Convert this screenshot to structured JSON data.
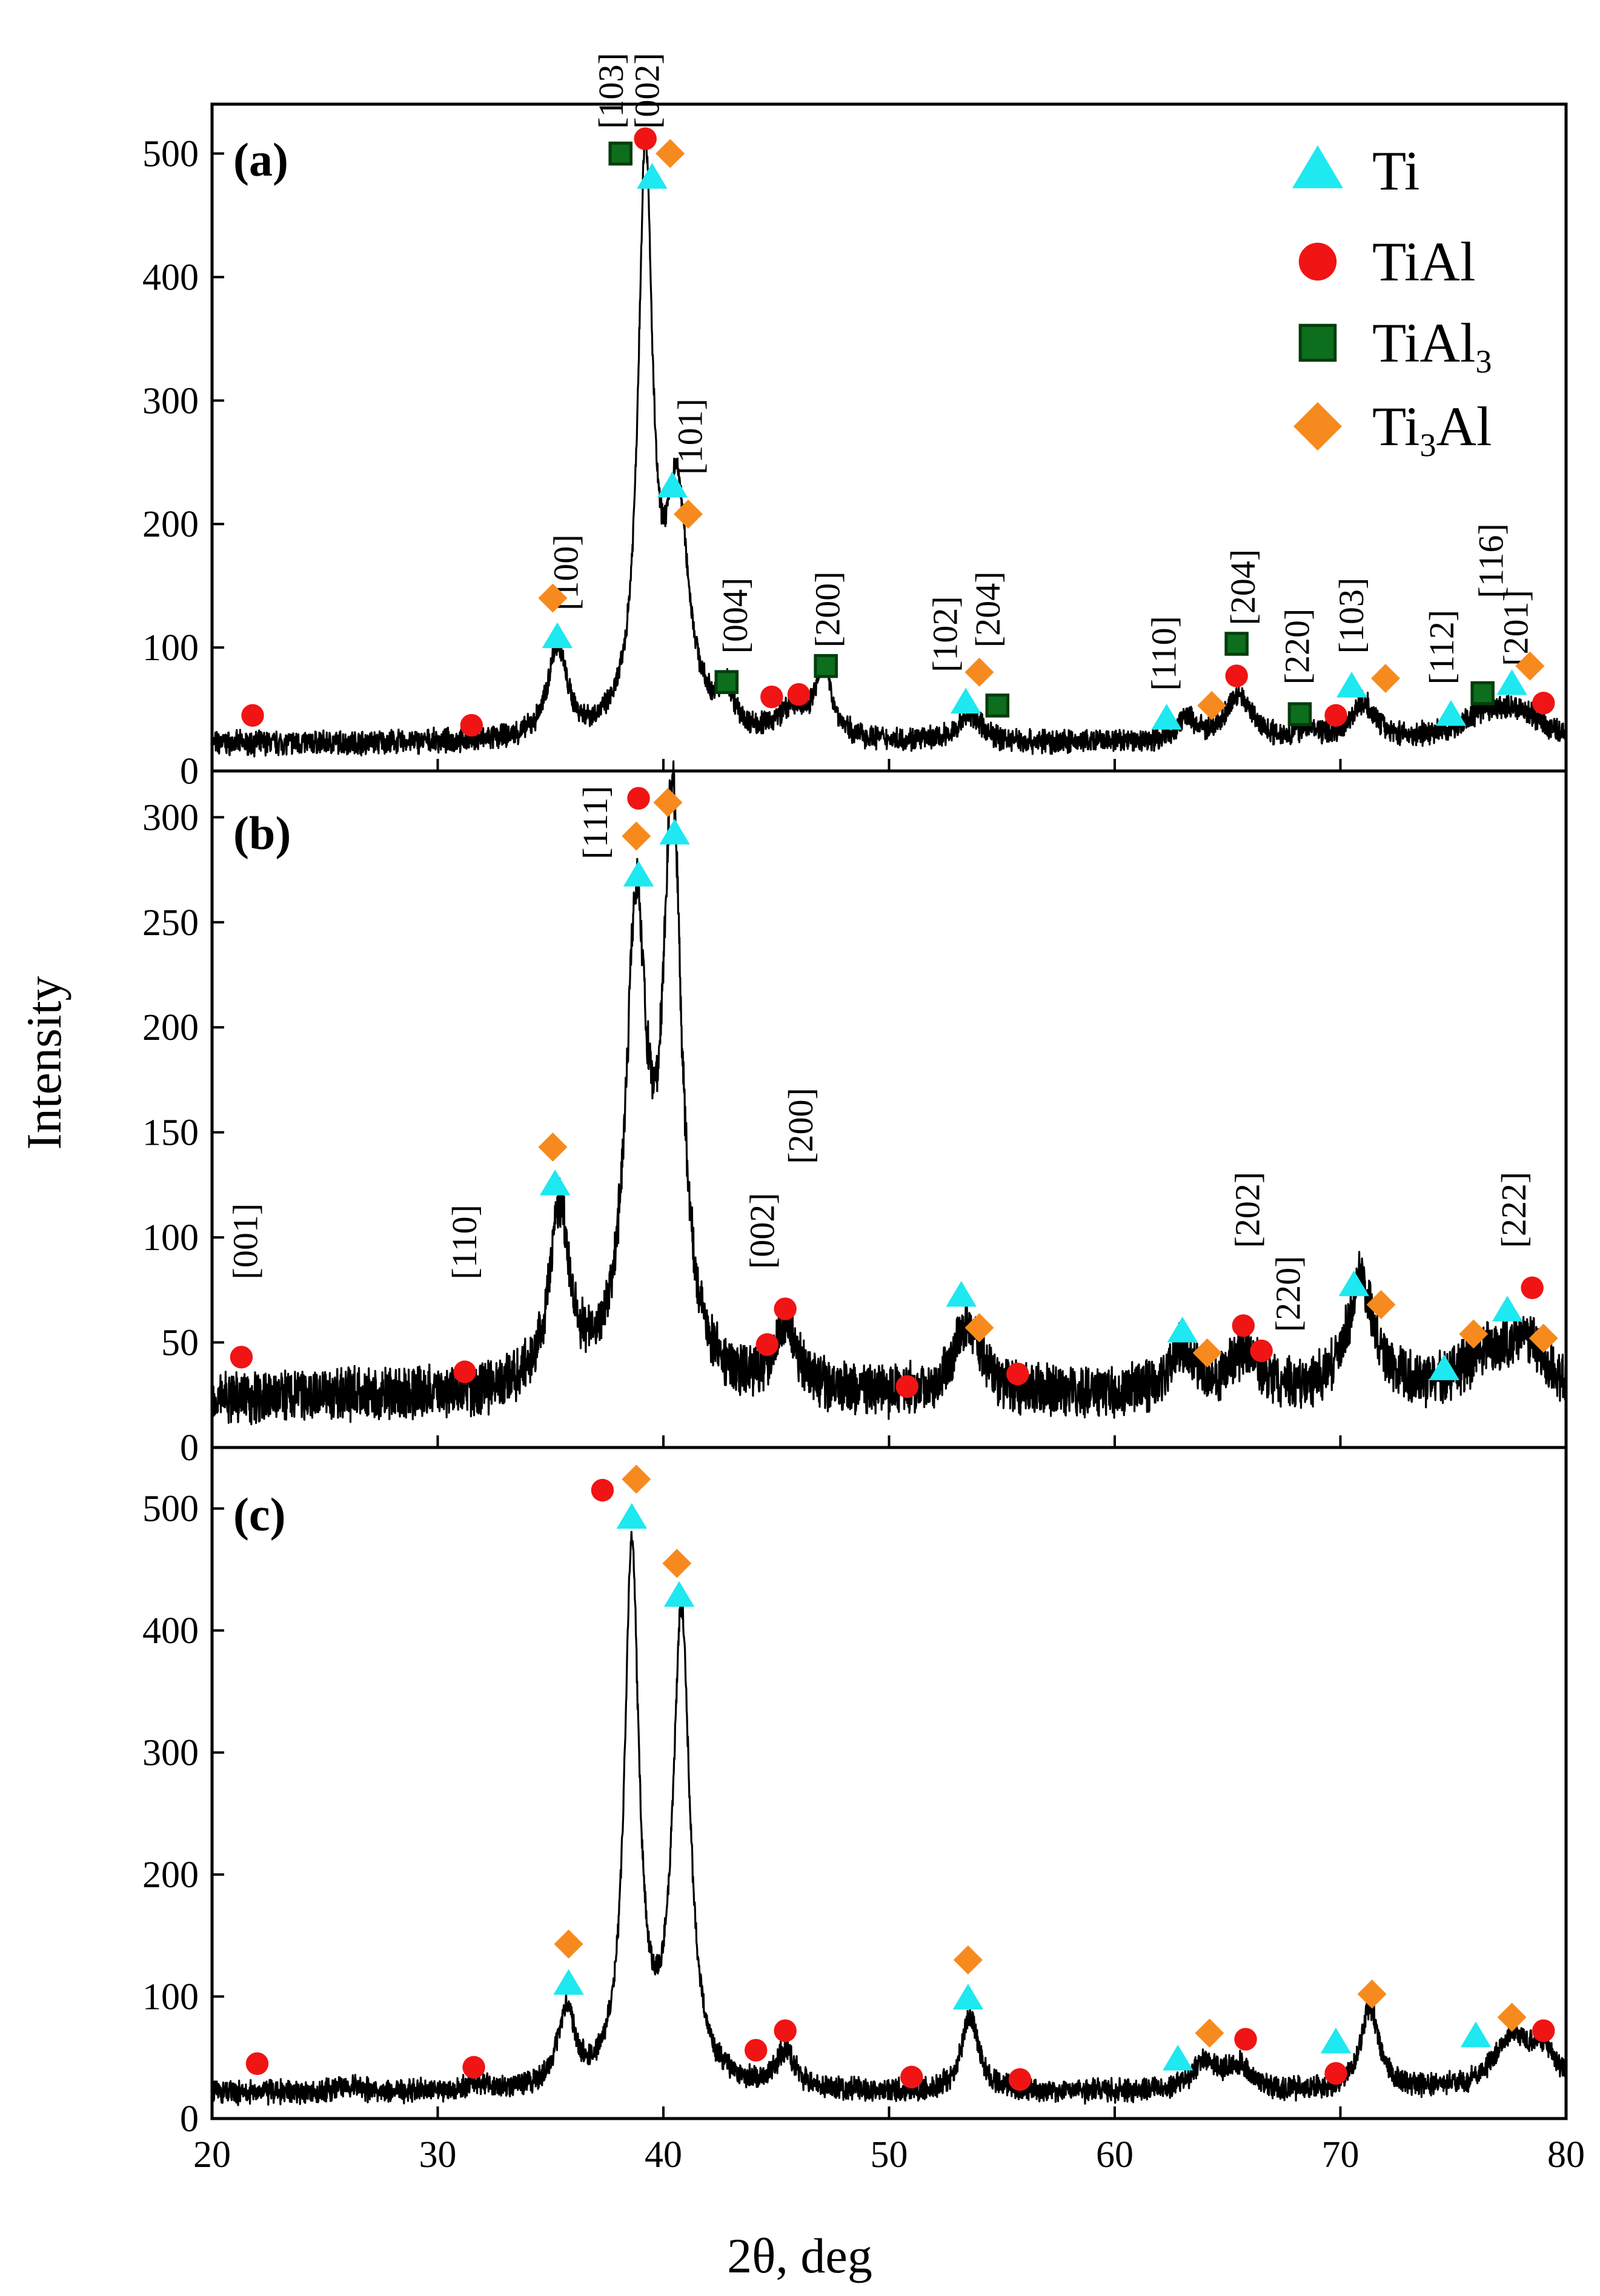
{
  "chart_data": [
    {
      "type": "line",
      "panel": "(a)",
      "ylim": [
        0,
        540
      ],
      "yticks": [
        0,
        100,
        200,
        300,
        400,
        500
      ],
      "baseline": 22,
      "peaks": [
        [
          35.3,
          75,
          0.5
        ],
        [
          39.2,
          460,
          0.38
        ],
        [
          40.6,
          190,
          0.62
        ],
        [
          42.8,
          30,
          0.4
        ],
        [
          45.7,
          22,
          0.8
        ],
        [
          47.1,
          55,
          0.45
        ],
        [
          53.6,
          22,
          0.6
        ],
        [
          63.2,
          18,
          0.5
        ],
        [
          65.5,
          38,
          0.7
        ],
        [
          68.5,
          8,
          0.6
        ],
        [
          71.0,
          30,
          0.7
        ],
        [
          76.5,
          20,
          1.5
        ],
        [
          78.0,
          18,
          1.2
        ]
      ],
      "markers": [
        {
          "phase": "TiAl",
          "x": 21.8,
          "y": 45
        },
        {
          "phase": "TiAl",
          "x": 31.5,
          "y": 37
        },
        {
          "phase": "Ti3Al",
          "x": 35.1,
          "y": 140
        },
        {
          "phase": "Ti",
          "x": 35.3,
          "y": 108
        },
        {
          "phase": "TiAl3",
          "x": 38.1,
          "y": 500
        },
        {
          "phase": "TiAl",
          "x": 39.2,
          "y": 512
        },
        {
          "phase": "Ti3Al",
          "x": 40.3,
          "y": 500
        },
        {
          "phase": "Ti",
          "x": 39.5,
          "y": 480
        },
        {
          "phase": "Ti",
          "x": 40.4,
          "y": 230
        },
        {
          "phase": "Ti3Al",
          "x": 41.1,
          "y": 208
        },
        {
          "phase": "TiAl3",
          "x": 42.8,
          "y": 72
        },
        {
          "phase": "TiAl",
          "x": 44.8,
          "y": 60
        },
        {
          "phase": "TiAl",
          "x": 46.0,
          "y": 62
        },
        {
          "phase": "TiAl3",
          "x": 47.2,
          "y": 85
        },
        {
          "phase": "Ti",
          "x": 53.4,
          "y": 55
        },
        {
          "phase": "Ti3Al",
          "x": 54.0,
          "y": 80
        },
        {
          "phase": "TiAl3",
          "x": 54.8,
          "y": 53
        },
        {
          "phase": "Ti",
          "x": 62.3,
          "y": 42
        },
        {
          "phase": "Ti3Al",
          "x": 64.3,
          "y": 53
        },
        {
          "phase": "TiAl3",
          "x": 65.4,
          "y": 103
        },
        {
          "phase": "TiAl",
          "x": 65.4,
          "y": 77
        },
        {
          "phase": "TiAl3",
          "x": 68.2,
          "y": 46
        },
        {
          "phase": "TiAl",
          "x": 69.8,
          "y": 45
        },
        {
          "phase": "Ti",
          "x": 70.5,
          "y": 68
        },
        {
          "phase": "Ti3Al",
          "x": 72.0,
          "y": 75
        },
        {
          "phase": "Ti",
          "x": 74.9,
          "y": 45
        },
        {
          "phase": "TiAl3",
          "x": 76.3,
          "y": 63
        },
        {
          "phase": "Ti",
          "x": 77.6,
          "y": 70
        },
        {
          "phase": "Ti3Al",
          "x": 78.4,
          "y": 85
        },
        {
          "phase": "TiAl",
          "x": 79.0,
          "y": 55
        }
      ],
      "annotations": [
        {
          "text": "[100]",
          "x": 36.2,
          "y": 130
        },
        {
          "text": "[103]",
          "x": 38.2,
          "y": 520
        },
        {
          "text": "[002]",
          "x": 39.8,
          "y": 520
        },
        {
          "text": "[101]",
          "x": 41.7,
          "y": 240
        },
        {
          "text": "[004]",
          "x": 43.7,
          "y": 95
        },
        {
          "text": "[200]",
          "x": 47.8,
          "y": 100
        },
        {
          "text": "[102]",
          "x": 53.0,
          "y": 80
        },
        {
          "text": "[204]",
          "x": 54.9,
          "y": 100
        },
        {
          "text": "[110]",
          "x": 62.7,
          "y": 65
        },
        {
          "text": "[204]",
          "x": 66.2,
          "y": 118
        },
        {
          "text": "[220]",
          "x": 68.6,
          "y": 70
        },
        {
          "text": "[103]",
          "x": 71.0,
          "y": 95
        },
        {
          "text": "[112]",
          "x": 75.0,
          "y": 70
        },
        {
          "text": "[116]",
          "x": 77.2,
          "y": 140
        },
        {
          "text": "[201]",
          "x": 78.3,
          "y": 85
        }
      ]
    },
    {
      "type": "line",
      "panel": "(b)",
      "ylim": [
        0,
        322
      ],
      "yticks": [
        0,
        50,
        100,
        150,
        200,
        250,
        300
      ],
      "baseline": 24,
      "peaks": [
        [
          35.4,
          85,
          0.55
        ],
        [
          38.8,
          220,
          0.55
        ],
        [
          40.4,
          270,
          0.5
        ],
        [
          45.4,
          32,
          0.6
        ],
        [
          53.5,
          35,
          0.7
        ],
        [
          63.0,
          22,
          0.7
        ],
        [
          65.8,
          20,
          0.7
        ],
        [
          70.9,
          55,
          0.7
        ],
        [
          76.5,
          16,
          1.5
        ],
        [
          78.2,
          22,
          1.0
        ]
      ],
      "markers": [
        {
          "phase": "TiAl",
          "x": 21.3,
          "y": 43
        },
        {
          "phase": "TiAl",
          "x": 31.2,
          "y": 36
        },
        {
          "phase": "Ti3Al",
          "x": 35.1,
          "y": 143
        },
        {
          "phase": "Ti",
          "x": 35.2,
          "y": 125
        },
        {
          "phase": "TiAl",
          "x": 38.9,
          "y": 309
        },
        {
          "phase": "Ti3Al",
          "x": 38.8,
          "y": 291
        },
        {
          "phase": "Ti",
          "x": 38.9,
          "y": 272
        },
        {
          "phase": "Ti3Al",
          "x": 40.2,
          "y": 307
        },
        {
          "phase": "Ti",
          "x": 40.5,
          "y": 292
        },
        {
          "phase": "TiAl",
          "x": 44.6,
          "y": 49
        },
        {
          "phase": "TiAl",
          "x": 45.4,
          "y": 66
        },
        {
          "phase": "TiAl",
          "x": 50.8,
          "y": 29
        },
        {
          "phase": "Ti",
          "x": 53.2,
          "y": 72
        },
        {
          "phase": "Ti3Al",
          "x": 54.0,
          "y": 57
        },
        {
          "phase": "TiAl",
          "x": 55.7,
          "y": 35
        },
        {
          "phase": "Ti",
          "x": 63.0,
          "y": 55
        },
        {
          "phase": "Ti3Al",
          "x": 64.1,
          "y": 45
        },
        {
          "phase": "TiAl",
          "x": 65.7,
          "y": 58
        },
        {
          "phase": "TiAl",
          "x": 66.5,
          "y": 46
        },
        {
          "phase": "Ti",
          "x": 70.6,
          "y": 77
        },
        {
          "phase": "Ti3Al",
          "x": 71.8,
          "y": 68
        },
        {
          "phase": "Ti",
          "x": 74.6,
          "y": 37
        },
        {
          "phase": "Ti3Al",
          "x": 75.9,
          "y": 54
        },
        {
          "phase": "Ti",
          "x": 77.4,
          "y": 65
        },
        {
          "phase": "TiAl",
          "x": 78.5,
          "y": 76
        },
        {
          "phase": "Ti3Al",
          "x": 79.0,
          "y": 52
        }
      ],
      "annotations": [
        {
          "text": "[001]",
          "x": 22.0,
          "y": 80
        },
        {
          "text": "[110]",
          "x": 31.7,
          "y": 80
        },
        {
          "text": "[111]",
          "x": 37.5,
          "y": 280
        },
        {
          "text": "[002]",
          "x": 44.9,
          "y": 85
        },
        {
          "text": "[200]",
          "x": 46.6,
          "y": 135
        },
        {
          "text": "[202]",
          "x": 66.4,
          "y": 95
        },
        {
          "text": "[220]",
          "x": 68.2,
          "y": 55
        },
        {
          "text": "[222]",
          "x": 78.2,
          "y": 95
        }
      ]
    },
    {
      "type": "line",
      "panel": "(c)",
      "ylim": [
        0,
        550
      ],
      "yticks": [
        0,
        100,
        200,
        300,
        400,
        500
      ],
      "baseline": 21,
      "peaks": [
        [
          26.0,
          6,
          0.5
        ],
        [
          31.8,
          6,
          0.5
        ],
        [
          35.7,
          62,
          0.45
        ],
        [
          38.6,
          440,
          0.38
        ],
        [
          40.8,
          385,
          0.45
        ],
        [
          45.4,
          30,
          0.5
        ],
        [
          53.6,
          62,
          0.45
        ],
        [
          64.0,
          24,
          0.7
        ],
        [
          65.5,
          20,
          0.6
        ],
        [
          71.3,
          68,
          0.5
        ],
        [
          77.6,
          42,
          1.0
        ],
        [
          79.0,
          28,
          0.8
        ]
      ],
      "markers": [
        {
          "phase": "TiAl",
          "x": 22.0,
          "y": 45
        },
        {
          "phase": "TiAl",
          "x": 31.6,
          "y": 42
        },
        {
          "phase": "Ti3Al",
          "x": 35.8,
          "y": 143
        },
        {
          "phase": "Ti",
          "x": 35.8,
          "y": 110
        },
        {
          "phase": "TiAl",
          "x": 37.3,
          "y": 515
        },
        {
          "phase": "Ti3Al",
          "x": 38.8,
          "y": 524
        },
        {
          "phase": "Ti",
          "x": 38.6,
          "y": 492
        },
        {
          "phase": "Ti3Al",
          "x": 40.6,
          "y": 455
        },
        {
          "phase": "Ti",
          "x": 40.7,
          "y": 428
        },
        {
          "phase": "TiAl",
          "x": 44.1,
          "y": 56
        },
        {
          "phase": "TiAl",
          "x": 45.4,
          "y": 72
        },
        {
          "phase": "TiAl",
          "x": 51.0,
          "y": 34
        },
        {
          "phase": "Ti3Al",
          "x": 53.5,
          "y": 130
        },
        {
          "phase": "Ti",
          "x": 53.5,
          "y": 98
        },
        {
          "phase": "TiAl",
          "x": 55.8,
          "y": 32
        },
        {
          "phase": "Ti",
          "x": 62.8,
          "y": 48
        },
        {
          "phase": "Ti3Al",
          "x": 64.2,
          "y": 70
        },
        {
          "phase": "TiAl",
          "x": 65.8,
          "y": 65
        },
        {
          "phase": "TiAl",
          "x": 69.8,
          "y": 37
        },
        {
          "phase": "Ti",
          "x": 69.8,
          "y": 62
        },
        {
          "phase": "Ti3Al",
          "x": 71.4,
          "y": 102
        },
        {
          "phase": "Ti",
          "x": 76.0,
          "y": 67
        },
        {
          "phase": "Ti3Al",
          "x": 77.6,
          "y": 83
        },
        {
          "phase": "TiAl",
          "x": 79.0,
          "y": 72
        }
      ],
      "annotations": []
    }
  ],
  "xaxis": {
    "label": "2θ, deg",
    "xlim": [
      20,
      80
    ],
    "ticks": [
      20,
      30,
      40,
      50,
      60,
      70,
      80
    ]
  },
  "yaxis": {
    "label": "Intensity"
  },
  "legend": {
    "position": "top-right of panel (a)",
    "entries": [
      {
        "phase": "Ti",
        "label": "Ti",
        "pre": "Ti",
        "sub": "",
        "post": ""
      },
      {
        "phase": "TiAl",
        "label": "TiAl",
        "pre": "TiAl",
        "sub": "",
        "post": ""
      },
      {
        "phase": "TiAl3",
        "label": "TiAl3",
        "pre": "TiAl",
        "sub": "3",
        "post": ""
      },
      {
        "phase": "Ti3Al",
        "label": "Ti3Al",
        "pre": "Ti",
        "sub": "3",
        "post": "Al"
      }
    ]
  },
  "colors": {
    "Ti": "#1ee8f0",
    "TiAl": "#f01414",
    "TiAl3": "#0d6e1e",
    "TiAl3_edge": "#043d0c",
    "Ti3Al": "#f78a1e",
    "line": "#000000"
  }
}
